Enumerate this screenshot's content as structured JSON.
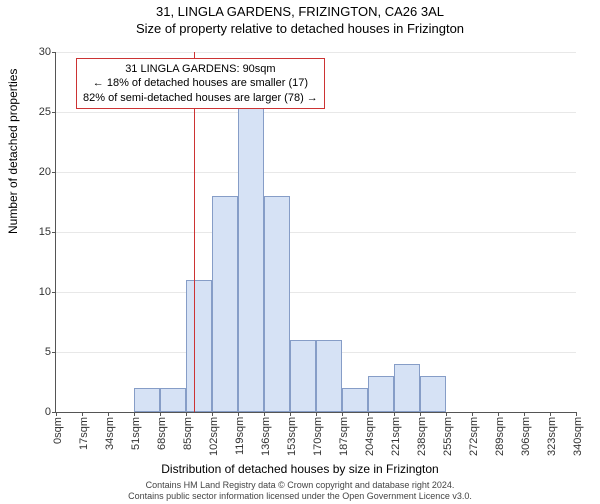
{
  "title_line1": "31, LINGLA GARDENS, FRIZINGTON, CA26 3AL",
  "title_line2": "Size of property relative to detached houses in Frizington",
  "ylabel": "Number of detached properties",
  "xlabel": "Distribution of detached houses by size in Frizington",
  "footer_line1": "Contains HM Land Registry data © Crown copyright and database right 2024.",
  "footer_line2": "Contains public sector information licensed under the Open Government Licence v3.0.",
  "chart": {
    "type": "histogram",
    "ylim": [
      0,
      30
    ],
    "ytick_step": 5,
    "xtick_step_sqm": 17,
    "xtick_count": 21,
    "xtick_unit": "sqm",
    "bar_fill": "#d6e2f5",
    "bar_border": "rgba(70,100,160,0.55)",
    "grid_color": "#e8e8e8",
    "bin_width_sqm": 17,
    "values": [
      0,
      0,
      0,
      2,
      2,
      11,
      18,
      26,
      18,
      6,
      6,
      2,
      3,
      4,
      3,
      0,
      0,
      0,
      0,
      0,
      0
    ],
    "marker_sqm": 90,
    "marker_color": "#cc3333"
  },
  "annotation": {
    "line1": "31 LINGLA GARDENS: 90sqm",
    "line2": "← 18% of detached houses are smaller (17)",
    "line3": "82% of semi-detached houses are larger (78) →",
    "border_color": "#cc3333"
  }
}
